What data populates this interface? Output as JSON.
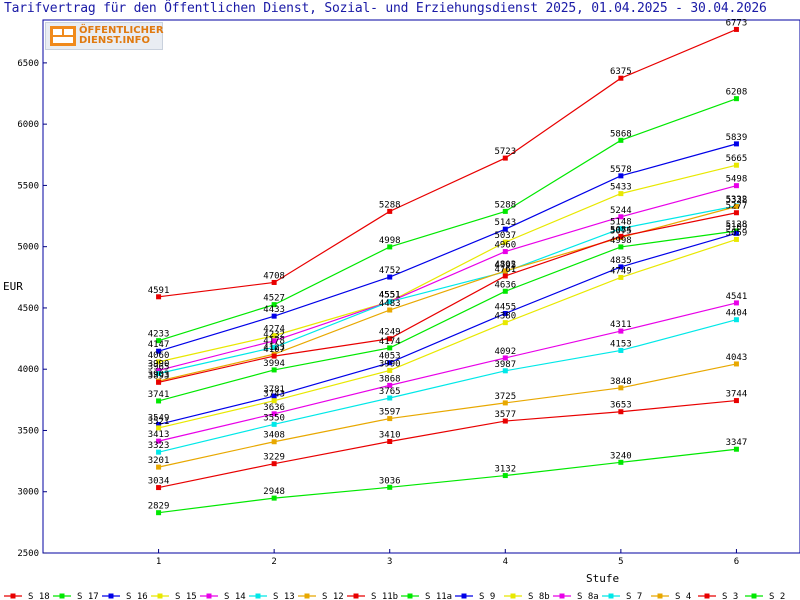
{
  "chart_data": {
    "type": "line",
    "title": "Tarifvertrag für den Öffentlichen Dienst, Sozial- und Erziehungsdienst 2025, 01.04.2025 - 30.04.2026",
    "xlabel": "Stufe",
    "ylabel": "EUR",
    "x": [
      1,
      2,
      3,
      4,
      5,
      6
    ],
    "xlim": [
      0,
      6.55
    ],
    "ylim": [
      2500,
      6850
    ],
    "y_ticks": [
      2500,
      3000,
      3500,
      4000,
      4500,
      5000,
      5500,
      6000,
      6500
    ],
    "grid": false,
    "legend": "bottom",
    "series": [
      {
        "name": "S_18",
        "color": "#e80000",
        "values": [
          4591,
          4708,
          5288,
          5723,
          6375,
          6773
        ]
      },
      {
        "name": "S_17",
        "color": "#00e800",
        "values": [
          4233,
          4527,
          4998,
          5288,
          5868,
          6208
        ]
      },
      {
        "name": "S_16",
        "color": "#0000e8",
        "values": [
          4147,
          4433,
          4752,
          5143,
          5578,
          5839
        ]
      },
      {
        "name": "S_15",
        "color": "#e8e800",
        "values": [
          4060,
          4274,
          4551,
          5037,
          5433,
          5665
        ]
      },
      {
        "name": "S_14",
        "color": "#e800e8",
        "values": [
          3990,
          4232,
          4551,
          4960,
          5244,
          5498
        ]
      },
      {
        "name": "S_13",
        "color": "#00e8e8",
        "values": [
          3965,
          4178,
          4551,
          4795,
          5148,
          5332
        ]
      },
      {
        "name": "S_12",
        "color": "#e8a800",
        "values": [
          3903,
          4123,
          4483,
          4802,
          5075,
          5328
        ]
      },
      {
        "name": "S_11b",
        "color": "#e80000",
        "values": [
          3893,
          4107,
          4249,
          4761,
          5084,
          5277
        ]
      },
      {
        "name": "S_11a",
        "color": "#00e800",
        "values": [
          3741,
          3994,
          4174,
          4636,
          4998,
          5128
        ]
      },
      {
        "name": "S_9",
        "color": "#0000e8",
        "values": [
          3549,
          3781,
          4053,
          4455,
          4835,
          5109
        ]
      },
      {
        "name": "S_8b",
        "color": "#e8e800",
        "values": [
          3521,
          3743,
          3990,
          4380,
          4749,
          5059
        ]
      },
      {
        "name": "S_8a",
        "color": "#e800e8",
        "values": [
          3413,
          3636,
          3868,
          4092,
          4311,
          4541
        ]
      },
      {
        "name": "S_7",
        "color": "#00e8e8",
        "values": [
          3323,
          3550,
          3765,
          3987,
          4153,
          4404
        ]
      },
      {
        "name": "S_4",
        "color": "#e8a800",
        "values": [
          3201,
          3408,
          3597,
          3725,
          3848,
          4043
        ]
      },
      {
        "name": "S_3",
        "color": "#e80000",
        "values": [
          3034,
          3229,
          3410,
          3577,
          3653,
          3744
        ]
      },
      {
        "name": "S_2",
        "color": "#00e800",
        "values": [
          2829,
          2948,
          3036,
          3132,
          3240,
          3347
        ]
      }
    ]
  },
  "logo": {
    "line1": "ÖFFENTLICHER",
    "line2": "DIENST.INFO"
  }
}
